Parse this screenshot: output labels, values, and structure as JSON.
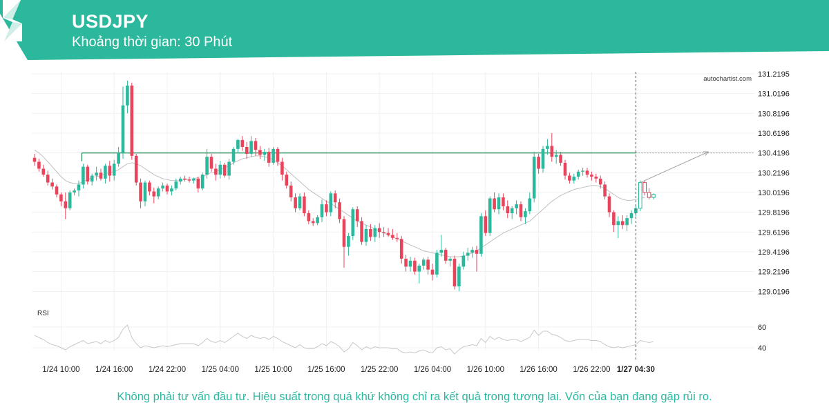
{
  "header": {
    "symbol": "USDJPY",
    "interval_label": "Khoảng thời gian: 30 Phút",
    "banner_color": "#2cb89c"
  },
  "watermark": "autochartist.com",
  "disclaimer": "Không phải tư vấn đầu tư. Hiệu suất trong quá khứ không chỉ ra kết quả trong tương lai. Vốn của bạn đang gặp rủi ro.",
  "chart_data": {
    "type": "candlestick",
    "symbol": "USDJPY",
    "timeframe_minutes": 30,
    "y_ticks": [
      "131.2195",
      "131.0196",
      "130.8196",
      "130.6196",
      "130.4196",
      "130.2196",
      "130.0196",
      "129.8196",
      "129.6196",
      "129.4196",
      "129.2196",
      "129.0196"
    ],
    "ylim": [
      128.98,
      131.24
    ],
    "x_ticks": [
      "1/24 10:00",
      "1/24 16:00",
      "1/24 22:00",
      "1/25 04:00",
      "1/25 10:00",
      "1/25 16:00",
      "1/25 22:00",
      "1/26 04:00",
      "1/26 10:00",
      "1/26 16:00",
      "1/26 22:00",
      "1/27 04:30"
    ],
    "x_tick_candle_index": [
      6,
      18,
      30,
      42,
      54,
      66,
      78,
      90,
      102,
      114,
      126,
      136
    ],
    "current_candle_index": 136,
    "colors": {
      "up": "#2cb89c",
      "down": "#e8455c",
      "level": "#3a9a6a",
      "ma": "#bfbfbf",
      "rsi": "#c8c8c8",
      "forecast": "#a0a0a0"
    },
    "resistance_level": {
      "value": 130.4196,
      "from_index": 11,
      "to_index": 136
    },
    "forecast_line": {
      "from": [
        137,
        130.12
      ],
      "to": [
        153,
        130.43
      ]
    },
    "candles": [
      [
        130.37,
        130.41,
        130.29,
        130.33
      ],
      [
        130.33,
        130.36,
        130.23,
        130.26
      ],
      [
        130.26,
        130.3,
        130.18,
        130.2
      ],
      [
        130.2,
        130.24,
        130.09,
        130.12
      ],
      [
        130.12,
        130.16,
        130.05,
        130.08
      ],
      [
        130.08,
        130.1,
        129.97,
        130.0
      ],
      [
        130.0,
        130.02,
        129.88,
        129.93
      ],
      [
        129.93,
        130.02,
        129.75,
        129.86
      ],
      [
        129.86,
        130.04,
        129.84,
        130.02
      ],
      [
        130.02,
        130.06,
        129.99,
        130.04
      ],
      [
        130.04,
        130.14,
        129.98,
        130.1
      ],
      [
        130.1,
        130.31,
        130.06,
        130.28
      ],
      [
        130.28,
        130.3,
        130.1,
        130.13
      ],
      [
        130.13,
        130.21,
        130.09,
        130.19
      ],
      [
        130.19,
        130.28,
        130.14,
        130.22
      ],
      [
        130.22,
        130.26,
        130.14,
        130.16
      ],
      [
        130.16,
        130.31,
        130.11,
        130.29
      ],
      [
        130.29,
        130.34,
        130.13,
        130.19
      ],
      [
        130.19,
        130.35,
        130.14,
        130.31
      ],
      [
        130.31,
        130.48,
        130.28,
        130.42
      ],
      [
        130.42,
        131.09,
        130.36,
        130.9
      ],
      [
        130.9,
        131.15,
        130.82,
        131.1
      ],
      [
        131.1,
        131.13,
        130.35,
        130.39
      ],
      [
        130.39,
        130.41,
        130.09,
        130.12
      ],
      [
        130.12,
        130.16,
        129.86,
        129.93
      ],
      [
        129.93,
        130.14,
        129.88,
        130.12
      ],
      [
        130.12,
        130.14,
        129.99,
        130.03
      ],
      [
        130.03,
        130.07,
        129.91,
        129.98
      ],
      [
        129.98,
        130.08,
        129.95,
        130.06
      ],
      [
        130.06,
        130.12,
        130.03,
        130.09
      ],
      [
        130.09,
        130.11,
        130.0,
        130.03
      ],
      [
        130.03,
        130.09,
        129.99,
        130.06
      ],
      [
        130.06,
        130.16,
        130.04,
        130.13
      ],
      [
        130.13,
        130.18,
        130.1,
        130.16
      ],
      [
        130.16,
        130.19,
        130.13,
        130.15
      ],
      [
        130.15,
        130.18,
        130.12,
        130.14
      ],
      [
        130.14,
        130.17,
        130.11,
        130.16
      ],
      [
        130.16,
        130.18,
        130.02,
        130.06
      ],
      [
        130.06,
        130.22,
        130.04,
        130.2
      ],
      [
        130.2,
        130.46,
        130.16,
        130.38
      ],
      [
        130.38,
        130.41,
        130.23,
        130.26
      ],
      [
        130.26,
        130.31,
        130.14,
        130.2
      ],
      [
        130.2,
        130.34,
        130.16,
        130.3
      ],
      [
        130.3,
        130.32,
        130.17,
        130.19
      ],
      [
        130.19,
        130.36,
        130.15,
        130.33
      ],
      [
        130.33,
        130.48,
        130.3,
        130.46
      ],
      [
        130.46,
        130.56,
        130.42,
        130.55
      ],
      [
        130.55,
        130.59,
        130.44,
        130.48
      ],
      [
        130.48,
        130.53,
        130.36,
        130.41
      ],
      [
        130.41,
        130.59,
        130.38,
        130.54
      ],
      [
        130.54,
        130.57,
        130.39,
        130.45
      ],
      [
        130.45,
        130.49,
        130.36,
        130.4
      ],
      [
        130.4,
        130.46,
        130.34,
        130.43
      ],
      [
        130.43,
        130.47,
        130.28,
        130.32
      ],
      [
        130.32,
        130.48,
        130.3,
        130.46
      ],
      [
        130.46,
        130.48,
        130.29,
        130.33
      ],
      [
        130.33,
        130.37,
        130.14,
        130.2
      ],
      [
        130.2,
        130.23,
        130.06,
        130.09
      ],
      [
        130.09,
        130.13,
        129.93,
        129.97
      ],
      [
        129.97,
        130.01,
        129.82,
        129.86
      ],
      [
        129.86,
        130.01,
        129.84,
        129.98
      ],
      [
        129.98,
        130.02,
        129.78,
        129.81
      ],
      [
        129.81,
        129.84,
        129.7,
        129.73
      ],
      [
        129.73,
        129.76,
        129.68,
        129.71
      ],
      [
        129.71,
        129.79,
        129.69,
        129.77
      ],
      [
        129.77,
        129.95,
        129.72,
        129.9
      ],
      [
        129.9,
        129.94,
        129.78,
        129.82
      ],
      [
        129.82,
        130.03,
        129.78,
        130.01
      ],
      [
        130.01,
        130.04,
        129.86,
        129.92
      ],
      [
        129.92,
        129.96,
        129.71,
        129.75
      ],
      [
        129.75,
        129.78,
        129.26,
        129.47
      ],
      [
        129.47,
        129.61,
        129.38,
        129.58
      ],
      [
        129.58,
        129.87,
        129.54,
        129.85
      ],
      [
        129.85,
        129.88,
        129.67,
        129.73
      ],
      [
        129.73,
        129.77,
        129.49,
        129.52
      ],
      [
        129.52,
        129.69,
        129.48,
        129.65
      ],
      [
        129.65,
        129.7,
        129.53,
        129.57
      ],
      [
        129.57,
        129.69,
        129.52,
        129.66
      ],
      [
        129.66,
        129.71,
        129.56,
        129.62
      ],
      [
        129.62,
        129.67,
        129.57,
        129.61
      ],
      [
        129.61,
        129.66,
        129.57,
        129.59
      ],
      [
        129.59,
        129.65,
        129.54,
        129.56
      ],
      [
        129.56,
        129.61,
        129.52,
        129.55
      ],
      [
        129.55,
        129.58,
        129.3,
        129.35
      ],
      [
        129.35,
        129.39,
        129.22,
        129.27
      ],
      [
        129.27,
        129.37,
        129.22,
        129.33
      ],
      [
        129.33,
        129.36,
        129.19,
        129.22
      ],
      [
        129.22,
        129.3,
        129.1,
        129.28
      ],
      [
        129.28,
        129.36,
        129.24,
        129.34
      ],
      [
        129.34,
        129.37,
        129.19,
        129.24
      ],
      [
        129.24,
        129.3,
        129.13,
        129.19
      ],
      [
        129.19,
        129.44,
        129.16,
        129.41
      ],
      [
        129.41,
        129.59,
        129.37,
        129.44
      ],
      [
        129.44,
        129.46,
        129.3,
        129.33
      ],
      [
        129.33,
        129.37,
        129.27,
        129.35
      ],
      [
        129.35,
        129.38,
        129.04,
        129.07
      ],
      [
        129.07,
        129.3,
        129.02,
        129.27
      ],
      [
        129.27,
        129.42,
        129.24,
        129.38
      ],
      [
        129.38,
        129.46,
        129.33,
        129.41
      ],
      [
        129.41,
        129.47,
        129.36,
        129.44
      ],
      [
        129.44,
        129.48,
        129.22,
        129.4
      ],
      [
        129.4,
        129.81,
        129.37,
        129.78
      ],
      [
        129.78,
        129.84,
        129.58,
        129.61
      ],
      [
        129.61,
        129.98,
        129.58,
        129.96
      ],
      [
        129.96,
        130.02,
        129.82,
        129.85
      ],
      [
        129.85,
        130.01,
        129.8,
        129.97
      ],
      [
        129.97,
        130.01,
        129.84,
        129.88
      ],
      [
        129.88,
        129.94,
        129.76,
        129.81
      ],
      [
        129.81,
        129.88,
        129.75,
        129.86
      ],
      [
        129.86,
        129.94,
        129.8,
        129.9
      ],
      [
        129.9,
        129.93,
        129.73,
        129.77
      ],
      [
        129.77,
        129.86,
        129.7,
        129.83
      ],
      [
        129.83,
        130.02,
        129.8,
        129.96
      ],
      [
        129.96,
        130.43,
        129.92,
        130.38
      ],
      [
        130.38,
        130.41,
        130.21,
        130.26
      ],
      [
        130.26,
        130.49,
        130.22,
        130.46
      ],
      [
        130.46,
        130.56,
        130.4,
        130.49
      ],
      [
        130.49,
        130.62,
        130.33,
        130.38
      ],
      [
        130.38,
        130.45,
        130.31,
        130.4
      ],
      [
        130.4,
        130.43,
        130.29,
        130.32
      ],
      [
        130.32,
        130.35,
        130.15,
        130.19
      ],
      [
        130.19,
        130.22,
        130.11,
        130.14
      ],
      [
        130.14,
        130.21,
        130.11,
        130.18
      ],
      [
        130.18,
        130.25,
        130.15,
        130.23
      ],
      [
        130.23,
        130.27,
        130.19,
        130.24
      ],
      [
        130.24,
        130.27,
        130.17,
        130.2
      ],
      [
        130.2,
        130.23,
        130.14,
        130.18
      ],
      [
        130.18,
        130.21,
        130.12,
        130.16
      ],
      [
        130.16,
        130.19,
        130.06,
        130.1
      ],
      [
        130.1,
        130.13,
        129.95,
        129.98
      ],
      [
        129.98,
        130.01,
        129.77,
        129.82
      ],
      [
        129.82,
        129.84,
        129.62,
        129.69
      ],
      [
        129.69,
        129.78,
        129.56,
        129.73
      ],
      [
        129.73,
        129.79,
        129.65,
        129.69
      ],
      [
        129.69,
        129.79,
        129.63,
        129.76
      ],
      [
        129.76,
        129.84,
        129.7,
        129.81
      ],
      [
        129.81,
        129.88,
        129.78,
        129.86
      ],
      [
        129.86,
        130.14,
        129.83,
        130.12
      ],
      [
        130.12,
        130.14,
        129.99,
        130.02
      ],
      [
        130.02,
        130.06,
        129.95,
        129.97
      ],
      [
        129.97,
        130.01,
        129.95,
        130.0
      ]
    ],
    "moving_average": [
      130.45,
      130.42,
      130.38,
      130.33,
      130.28,
      130.23,
      130.18,
      130.14,
      130.12,
      130.11,
      130.11,
      130.13,
      130.15,
      130.17,
      130.18,
      130.19,
      130.21,
      130.22,
      130.23,
      130.25,
      130.28,
      130.31,
      130.32,
      130.31,
      130.29,
      130.26,
      130.23,
      130.2,
      130.18,
      130.16,
      130.15,
      130.14,
      130.14,
      130.14,
      130.15,
      130.15,
      130.16,
      130.17,
      130.18,
      130.2,
      130.22,
      130.23,
      130.25,
      130.27,
      130.29,
      130.32,
      130.34,
      130.36,
      130.37,
      130.38,
      130.39,
      130.39,
      130.38,
      130.37,
      130.35,
      130.32,
      130.29,
      130.25,
      130.21,
      130.17,
      130.13,
      130.09,
      130.05,
      130.02,
      129.99,
      129.96,
      129.93,
      129.91,
      129.88,
      129.85,
      129.82,
      129.79,
      129.76,
      129.73,
      129.71,
      129.69,
      129.67,
      129.65,
      129.63,
      129.61,
      129.59,
      129.57,
      129.55,
      129.53,
      129.51,
      129.49,
      129.47,
      129.45,
      129.43,
      129.42,
      129.41,
      129.4,
      129.39,
      129.38,
      129.37,
      129.37,
      129.37,
      129.38,
      129.39,
      129.41,
      129.43,
      129.46,
      129.49,
      129.52,
      129.55,
      129.58,
      129.61,
      129.63,
      129.65,
      129.67,
      129.69,
      129.71,
      129.73,
      129.77,
      129.81,
      129.85,
      129.89,
      129.93,
      129.96,
      129.99,
      130.01,
      130.03,
      130.05,
      130.06,
      130.07,
      130.08,
      130.09,
      130.09,
      130.08,
      130.06,
      130.03,
      130.0,
      129.97,
      129.95,
      129.94,
      129.94,
      129.95,
      129.96,
      129.97
    ],
    "rsi": {
      "label": "RSI",
      "y_ticks": [
        60,
        40
      ],
      "ylim": [
        30,
        70
      ],
      "values": [
        52,
        50,
        48,
        45,
        43,
        42,
        40,
        38,
        41,
        43,
        45,
        47,
        44,
        45,
        46,
        44,
        47,
        45,
        47,
        50,
        58,
        62,
        50,
        44,
        40,
        42,
        41,
        40,
        41,
        42,
        41,
        42,
        43,
        44,
        44,
        44,
        44,
        42,
        45,
        49,
        46,
        45,
        47,
        45,
        48,
        51,
        54,
        51,
        49,
        52,
        50,
        49,
        50,
        48,
        51,
        49,
        46,
        44,
        42,
        40,
        43,
        40,
        39,
        39,
        41,
        44,
        42,
        46,
        44,
        41,
        36,
        39,
        45,
        42,
        38,
        41,
        39,
        41,
        40,
        40,
        40,
        39,
        39,
        36,
        35,
        36,
        35,
        37,
        38,
        36,
        35,
        40,
        41,
        38,
        39,
        34,
        38,
        41,
        42,
        43,
        42,
        49,
        45,
        51,
        48,
        50,
        48,
        47,
        48,
        48,
        46,
        48,
        50,
        57,
        52,
        56,
        56,
        53,
        52,
        50,
        47,
        46,
        47,
        48,
        48,
        48,
        47,
        47,
        46,
        43,
        41,
        40,
        41,
        40,
        41,
        42,
        43,
        47,
        46,
        45,
        46
      ]
    }
  }
}
